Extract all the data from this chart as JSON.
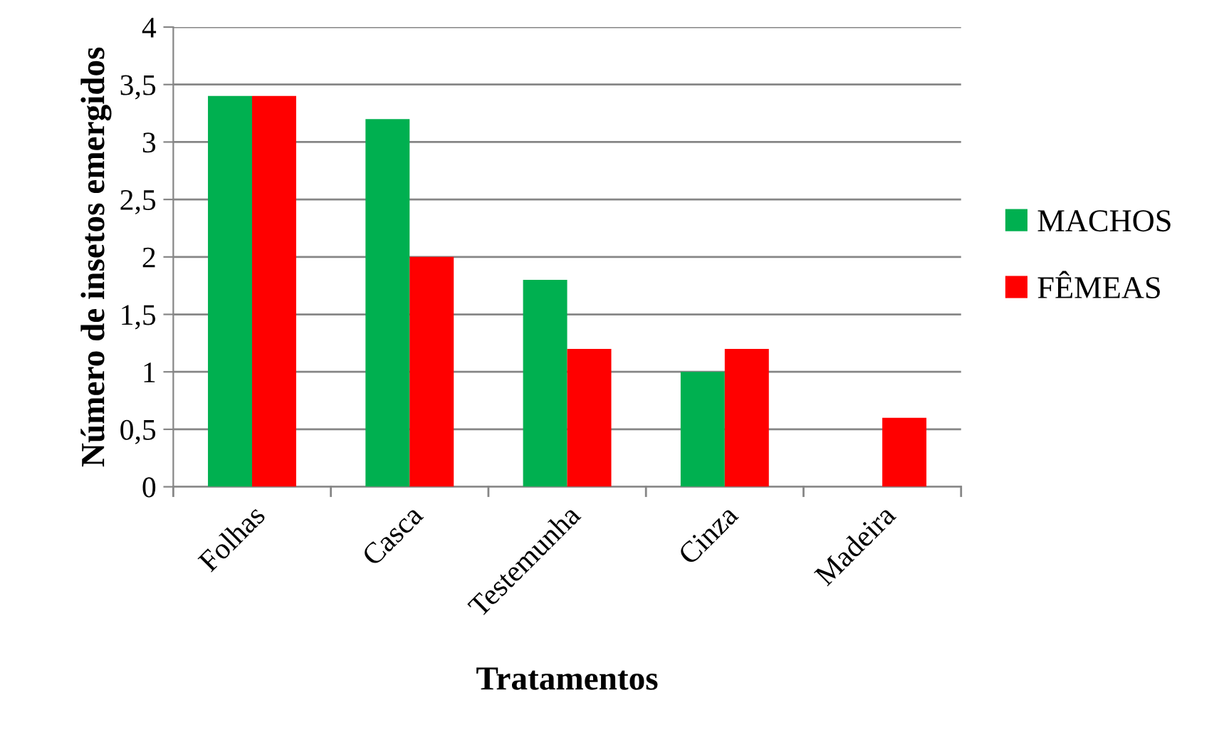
{
  "chart_data": {
    "type": "bar",
    "xlabel": "Tratamentos",
    "ylabel": "Número de insetos emergidos",
    "categories": [
      "Folhas",
      "Casca",
      "Testemunha",
      "Cinza",
      "Madeira"
    ],
    "series": [
      {
        "name": "MACHOS",
        "color": "#00b050",
        "values": [
          3.4,
          3.2,
          1.8,
          1.0,
          0
        ]
      },
      {
        "name": "FÊMEAS",
        "color": "#ff0000",
        "values": [
          3.4,
          2.0,
          1.2,
          1.2,
          0.6
        ]
      }
    ],
    "ylim": [
      0,
      4
    ],
    "yticks": [
      0,
      {
        "value": 0.5,
        "label": "0,5"
      },
      1,
      {
        "value": 1.5,
        "label": "1,5"
      },
      2,
      {
        "value": 2.5,
        "label": "2,5"
      },
      3,
      {
        "value": 3.5,
        "label": "3,5"
      },
      4
    ],
    "grid": "y",
    "legend": "right"
  }
}
